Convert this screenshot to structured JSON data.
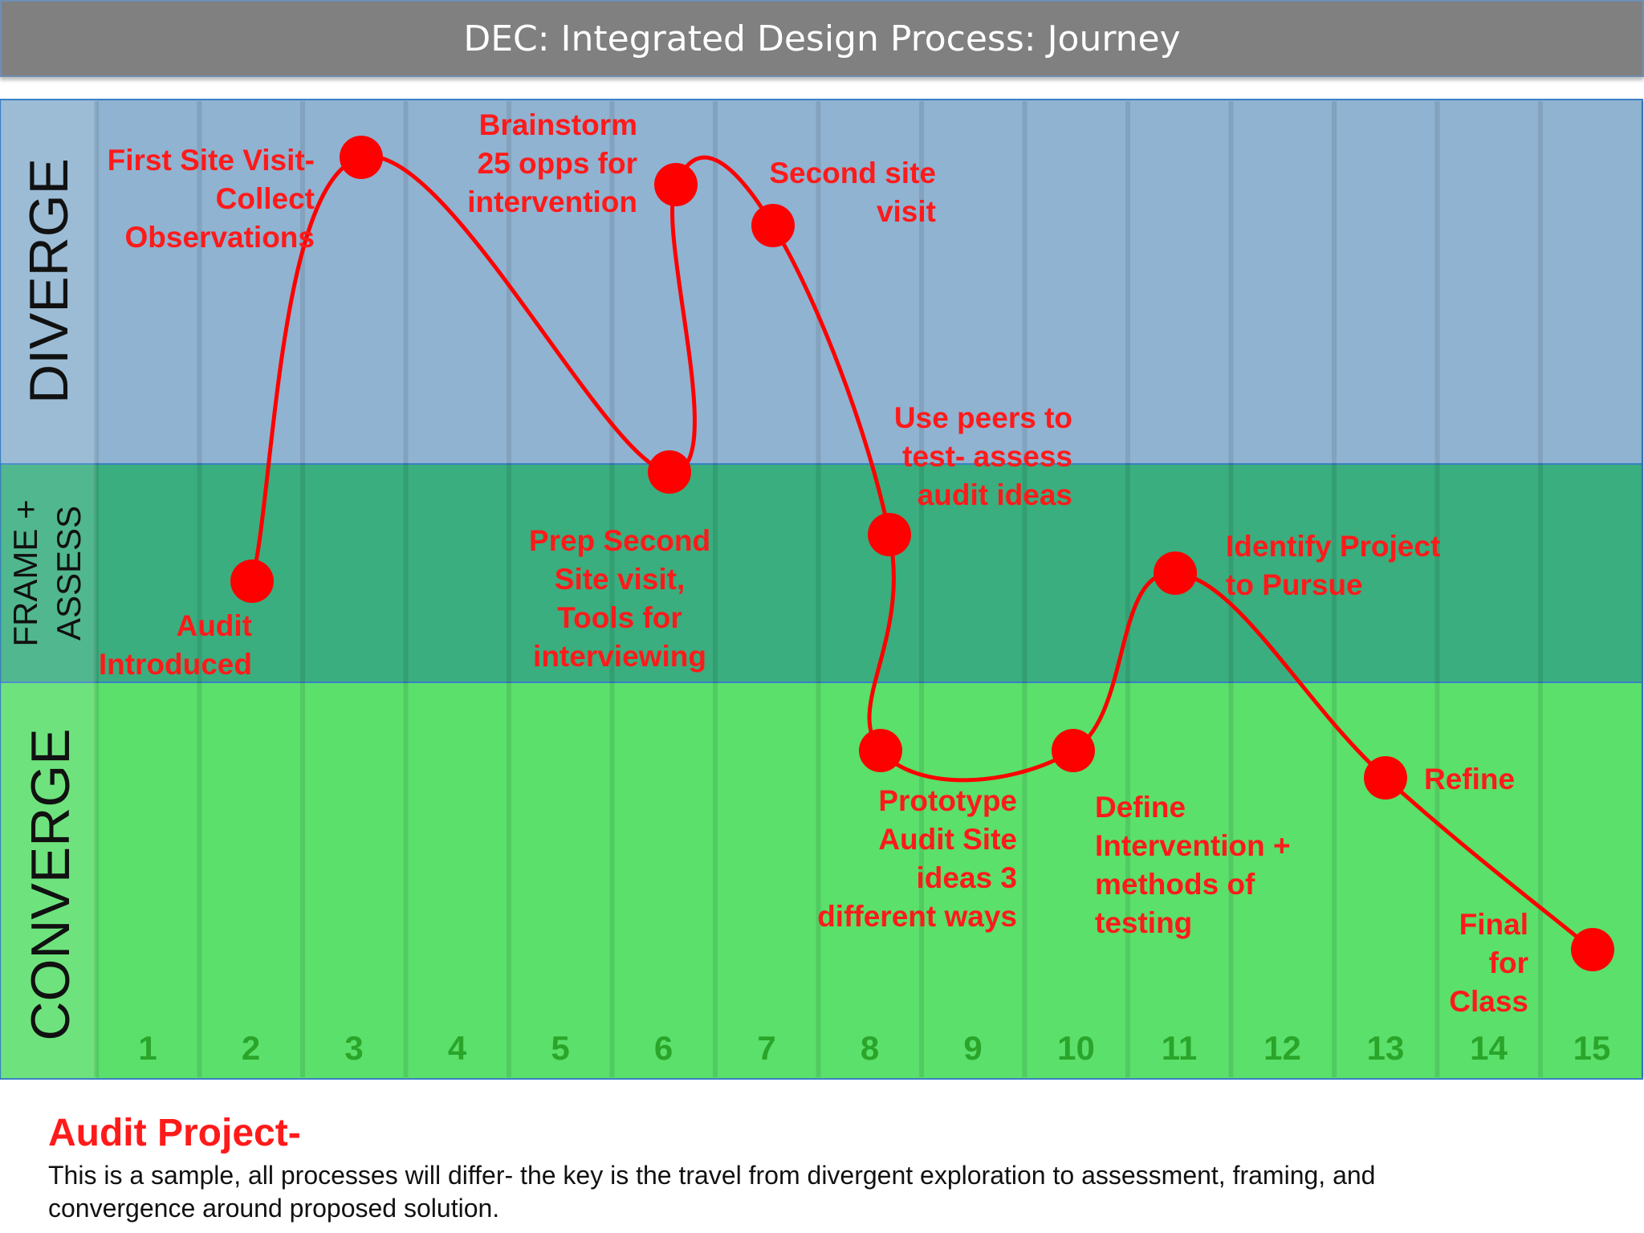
{
  "title": "DEC: Integrated Design Process: Journey",
  "colors": {
    "diverge": "#8fb3d1",
    "frame_assess": "#3aae7f",
    "converge": "#5ae06b",
    "path": "#ff0000",
    "label": "#ff1a1a",
    "week_number": "#2aa52a"
  },
  "bands": {
    "diverge": "DIVERGE",
    "frame_line1": "FRAME +",
    "frame_line2": "ASSESS",
    "converge": "CONVERGE"
  },
  "weeks": [
    "1",
    "2",
    "3",
    "4",
    "5",
    "6",
    "7",
    "8",
    "9",
    "10",
    "11",
    "12",
    "13",
    "14",
    "15"
  ],
  "steps": [
    {
      "week": 2,
      "level": "frame",
      "label": [
        "Audit",
        "Introduced"
      ]
    },
    {
      "week": 3,
      "level": "diverge",
      "label": [
        "First Site Visit-",
        "Collect",
        "Observations"
      ]
    },
    {
      "week": 6,
      "level": "frame",
      "label": [
        "Prep Second",
        "Site visit,",
        "Tools for",
        "interviewing"
      ]
    },
    {
      "week": 6,
      "level": "diverge",
      "label": [
        "Brainstorm",
        "25 opps for",
        "intervention"
      ]
    },
    {
      "week": 7,
      "level": "diverge",
      "label": [
        "Second site",
        "visit"
      ]
    },
    {
      "week": 8,
      "level": "frame",
      "label": [
        "Use peers to",
        "test- assess",
        "audit ideas"
      ]
    },
    {
      "week": 8,
      "level": "converge",
      "label": [
        "Prototype",
        "Audit Site",
        "ideas 3",
        "different ways"
      ]
    },
    {
      "week": 10,
      "level": "converge",
      "label": [
        "Define",
        "Intervention +",
        "methods of",
        "testing"
      ]
    },
    {
      "week": 11,
      "level": "frame",
      "label": [
        "Identify Project",
        "to Pursue"
      ]
    },
    {
      "week": 13,
      "level": "converge",
      "label": [
        "Refine"
      ]
    },
    {
      "week": 15,
      "level": "converge",
      "label": [
        "Final",
        "for",
        "Class"
      ]
    }
  ],
  "footer": {
    "heading": "Audit Project-",
    "description": "This is a sample, all processes will differ- the key is the travel from divergent exploration to assessment, framing, and convergence around proposed solution."
  }
}
